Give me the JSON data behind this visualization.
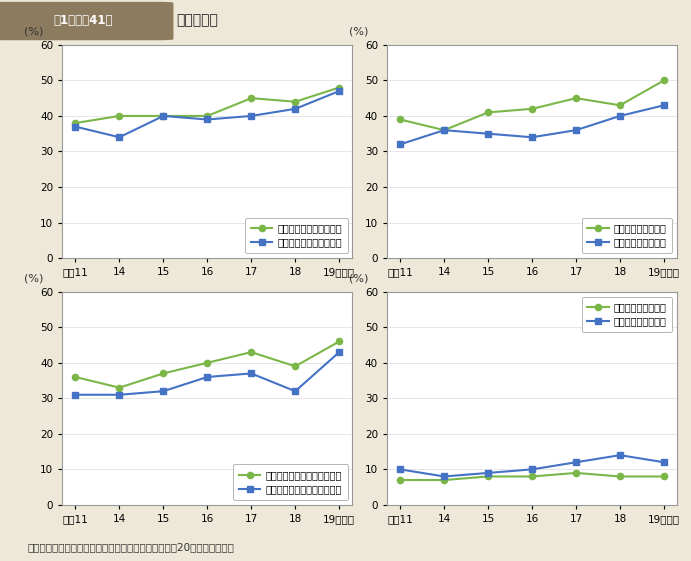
{
  "title_box": "第1－特－41図",
  "title_text": "日本の誇り",
  "subtitle": "（備考）内閣府「社会意識に関する世論調査」（平成20年）より作成。",
  "x_labels": [
    "平成11",
    "14",
    "15",
    "16",
    "17",
    "18",
    "19（年）"
  ],
  "x_values": [
    0,
    1,
    2,
    3,
    4,
    5,
    6
  ],
  "plots": [
    {
      "legend_female_full": "長い歴史と伝統（女性）",
      "legend_male_full": "長い歴史と伝統（男性）",
      "female": [
        38,
        40,
        40,
        40,
        45,
        44,
        48
      ],
      "male": [
        37,
        34,
        40,
        39,
        40,
        42,
        47
      ]
    },
    {
      "legend_female_full": "美しい自然（女性）",
      "legend_male_full": "美しい自然（男性）",
      "female": [
        39,
        36,
        41,
        42,
        45,
        43,
        50
      ],
      "male": [
        32,
        36,
        35,
        34,
        36,
        40,
        43
      ]
    },
    {
      "legend_female_full": "すぐれた文化や芸術（女性）",
      "legend_male_full": "すぐれた文化や芸術（男性）",
      "female": [
        36,
        33,
        37,
        40,
        43,
        39,
        46
      ],
      "male": [
        31,
        31,
        32,
        36,
        37,
        32,
        43
      ]
    },
    {
      "legend_female_full": "経済的繁栄（女性）",
      "legend_male_full": "経済的繁栄（男性）",
      "female": [
        7,
        7,
        8,
        8,
        9,
        8,
        8
      ],
      "male": [
        10,
        8,
        9,
        10,
        12,
        14,
        12
      ]
    }
  ],
  "color_female": "#7ab648",
  "color_male": "#4472c4",
  "bg_color": "#ede8d8",
  "plot_bg": "#ffffff",
  "ylim": [
    0,
    60
  ],
  "yticks": [
    0,
    10,
    20,
    30,
    40,
    50,
    60
  ]
}
